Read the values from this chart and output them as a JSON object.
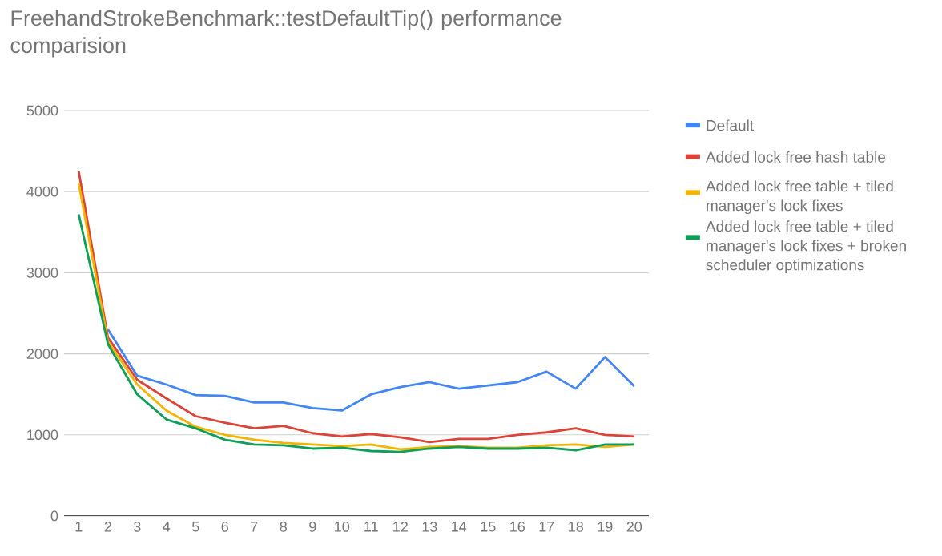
{
  "chart_data": {
    "type": "line",
    "title": "FreehandStrokeBenchmark::testDefaultTip() performance comparision",
    "categories": [
      "1",
      "2",
      "3",
      "4",
      "5",
      "6",
      "7",
      "8",
      "9",
      "10",
      "11",
      "12",
      "13",
      "14",
      "15",
      "16",
      "17",
      "18",
      "19",
      "20"
    ],
    "series": [
      {
        "name": "Default",
        "color": "#4285f4",
        "values": [
          null,
          2300,
          1730,
          1620,
          1490,
          1480,
          1400,
          1400,
          1330,
          1300,
          1500,
          1590,
          1650,
          1570,
          1610,
          1650,
          1780,
          1570,
          1960,
          1600
        ]
      },
      {
        "name": "Added lock free hash table",
        "color": "#db4437",
        "values": [
          4250,
          2200,
          1680,
          1450,
          1230,
          1150,
          1080,
          1110,
          1020,
          980,
          1010,
          970,
          910,
          950,
          950,
          1000,
          1030,
          1080,
          1000,
          980
        ]
      },
      {
        "name": "Added lock free table + tiled manager's lock fixes",
        "color": "#f4b400",
        "values": [
          4100,
          2150,
          1620,
          1300,
          1100,
          1000,
          940,
          900,
          880,
          860,
          880,
          820,
          850,
          860,
          840,
          840,
          870,
          880,
          850,
          880
        ]
      },
      {
        "name": "Added lock free table + tiled manager's lock fixes + broken scheduler optimizations",
        "color": "#0f9d58",
        "values": [
          3720,
          2120,
          1500,
          1190,
          1080,
          940,
          880,
          870,
          830,
          840,
          800,
          790,
          830,
          850,
          830,
          830,
          840,
          810,
          880,
          880
        ]
      }
    ],
    "ylim": [
      0,
      5000
    ],
    "yticks": [
      0,
      1000,
      2000,
      3000,
      4000,
      5000
    ],
    "grid": "y",
    "legend": "right",
    "marker": "none",
    "line_style": "solid"
  }
}
